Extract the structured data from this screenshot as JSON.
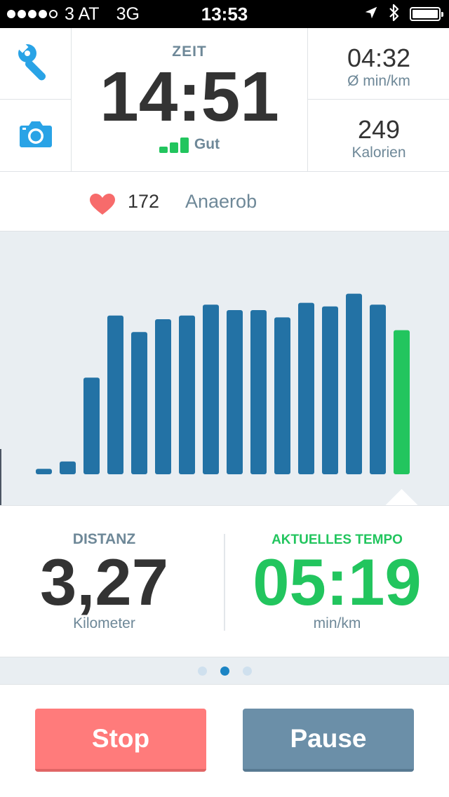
{
  "status_bar": {
    "signal_dots": 5,
    "signal_filled": 4,
    "carrier": "3 AT",
    "network": "3G",
    "time": "13:53",
    "icons": [
      "location-arrow-icon",
      "bluetooth-icon",
      "battery-icon"
    ]
  },
  "toolbar": {
    "settings_icon": "wrench-icon",
    "camera_icon": "camera-icon"
  },
  "time_panel": {
    "label": "ZEIT",
    "value": "14:51",
    "gps_quality": "Gut",
    "gps_bars": 3
  },
  "stats": {
    "pace_value": "04:32",
    "pace_unit": "Ø min/km",
    "calories_value": "249",
    "calories_unit": "Kalorien"
  },
  "heart": {
    "icon": "heart-icon",
    "value": "172",
    "zone": "Anaerob"
  },
  "chart_data": {
    "type": "bar",
    "values": [
      3,
      7,
      53,
      87,
      78,
      85,
      87,
      93,
      90,
      90,
      86,
      94,
      92,
      99,
      93,
      79
    ],
    "highlight_last": true,
    "colors": {
      "bar": "#2372a5",
      "current": "#22c55e",
      "background": "#e9eef2"
    }
  },
  "metrics": {
    "distance_label": "DISTANZ",
    "distance_value": "3,27",
    "distance_unit": "Kilometer",
    "tempo_label": "AKTUELLES TEMPO",
    "tempo_value": "05:19",
    "tempo_unit": "min/km"
  },
  "pager": {
    "count": 3,
    "active": 1
  },
  "buttons": {
    "stop_label": "Stop",
    "pause_label": "Pause"
  },
  "colors": {
    "accent_blue": "#29a3e6",
    "green": "#22c55e",
    "label_gray": "#6e8898",
    "stop_red": "#ff7b7b",
    "pause_blue_gray": "#6b8fa8"
  }
}
